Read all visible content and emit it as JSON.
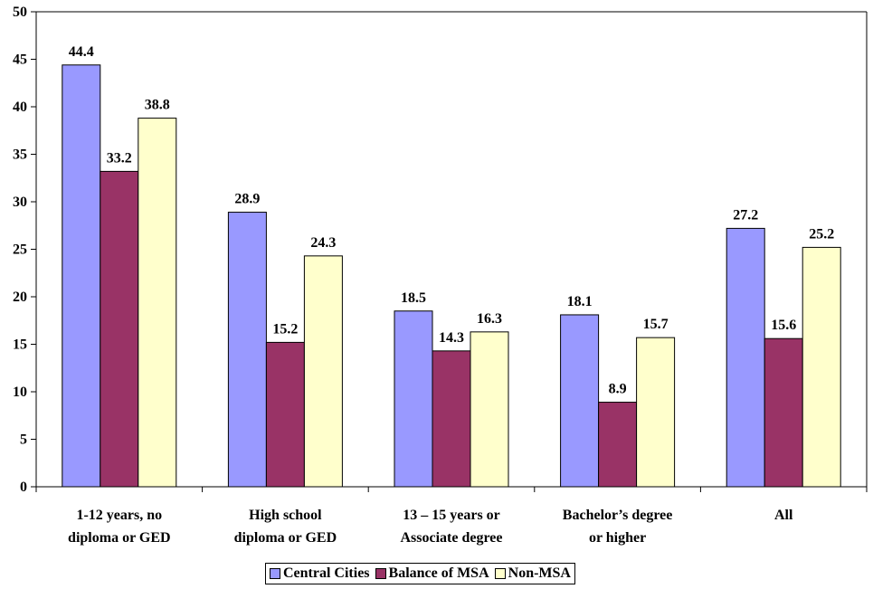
{
  "chart_data": {
    "type": "bar",
    "title": "",
    "xlabel": "",
    "ylabel": "",
    "ylim": [
      0,
      50
    ],
    "yticks": [
      "0",
      "5",
      "10",
      "15",
      "20",
      "25",
      "30",
      "35",
      "40",
      "45",
      "50"
    ],
    "grid": false,
    "legend_position": "bottom",
    "categories": [
      [
        "1-12 years, no",
        "diploma or GED"
      ],
      [
        "High school",
        "diploma or GED"
      ],
      [
        "13 – 15 years or",
        "Associate degree"
      ],
      [
        "Bachelor’s degree",
        "or higher"
      ],
      [
        "All"
      ]
    ],
    "series": [
      {
        "name": "Central Cities",
        "color": "#9999ff",
        "values": [
          44.4,
          28.9,
          18.5,
          18.1,
          27.2
        ],
        "labels": [
          "44.4",
          "28.9",
          "18.5",
          "18.1",
          "27.2"
        ]
      },
      {
        "name": "Balance of MSA",
        "color": "#993366",
        "values": [
          33.2,
          15.2,
          14.3,
          8.9,
          15.6
        ],
        "labels": [
          "33.2",
          "15.2",
          "14.3",
          "8.9",
          "15.6"
        ]
      },
      {
        "name": "Non-MSA",
        "color": "#ffffcc",
        "values": [
          38.8,
          24.3,
          16.3,
          15.7,
          25.2
        ],
        "labels": [
          "38.8",
          "24.3",
          "16.3",
          "15.7",
          "25.2"
        ]
      }
    ]
  }
}
